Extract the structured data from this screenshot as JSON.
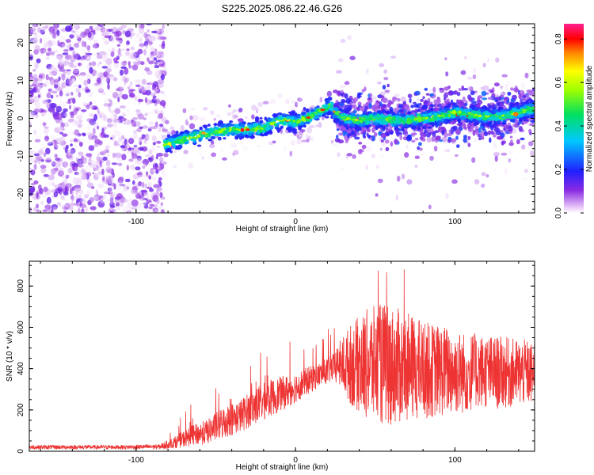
{
  "figure": {
    "title": "S225.2025.086.22.46.G26"
  },
  "chart_data": [
    {
      "type": "heatmap",
      "title": "S225.2025.086.22.46.G26",
      "xlabel": "Height of straight line (km)",
      "ylabel": "Frequency (Hz)",
      "xlim": [
        -167,
        150
      ],
      "ylim": [
        -25,
        25
      ],
      "xticks": [
        -100,
        0,
        100
      ],
      "yticks": [
        -20,
        -10,
        0,
        10,
        20
      ],
      "colorbar": {
        "label": "Normalized spectral amplitude",
        "range": [
          0,
          0.87
        ],
        "ticks": [
          0.0,
          0.2,
          0.4,
          0.6,
          0.8
        ],
        "colormap": "rainbow (white-violet-blue-cyan-green-yellow-red-magenta)"
      },
      "ridge_x": [
        -82,
        -70,
        -60,
        -50,
        -40,
        -30,
        -20,
        -10,
        0,
        10,
        20,
        22,
        25,
        30,
        40,
        50,
        60,
        70,
        80,
        90,
        100,
        110,
        120,
        130,
        140,
        148
      ],
      "ridge_y": [
        -7,
        -5.5,
        -4.5,
        -3.5,
        -3,
        -3,
        -2.5,
        -0.5,
        -1,
        0.5,
        3,
        3.5,
        1.5,
        0,
        -0.5,
        0,
        -0.5,
        -0.5,
        0,
        0.5,
        1.5,
        1,
        0.5,
        0.5,
        1.5,
        2.5
      ],
      "noise_region_x": [
        -167,
        -82
      ],
      "grid": false
    },
    {
      "type": "line",
      "xlabel": "Height of straight line (km)",
      "ylabel": "SNR (10 * v/v)",
      "xlim": [
        -167,
        150
      ],
      "ylim": [
        0,
        920
      ],
      "xticks": [
        -100,
        0,
        100
      ],
      "yticks": [
        0,
        200,
        400,
        600,
        800
      ],
      "grid": false,
      "series": [
        {
          "color": "#ee3333",
          "envelope_x": [
            -167,
            -140,
            -110,
            -85,
            -75,
            -65,
            -55,
            -45,
            -35,
            -25,
            -15,
            -5,
            5,
            15,
            25,
            28,
            35,
            45,
            55,
            65,
            75,
            85,
            95,
            105,
            115,
            125,
            135,
            145,
            150
          ],
          "envelope_mean": [
            20,
            20,
            20,
            22,
            45,
            75,
            95,
            140,
            170,
            220,
            260,
            290,
            330,
            370,
            410,
            420,
            420,
            420,
            420,
            410,
            400,
            390,
            390,
            380,
            390,
            380,
            380,
            380,
            370
          ],
          "envelope_halfwidth": [
            10,
            10,
            10,
            12,
            30,
            50,
            60,
            80,
            80,
            90,
            90,
            80,
            70,
            60,
            70,
            120,
            200,
            270,
            300,
            280,
            250,
            230,
            220,
            200,
            180,
            180,
            170,
            160,
            150
          ],
          "peak_max": 910
        }
      ]
    }
  ]
}
